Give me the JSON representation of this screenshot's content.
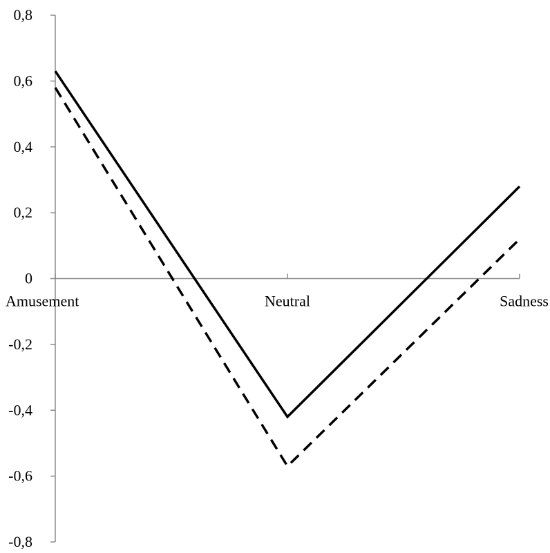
{
  "chart_data": {
    "type": "line",
    "title": "",
    "xlabel": "",
    "ylabel": "",
    "categories": [
      "Amusement",
      "Neutral",
      "Sadness"
    ],
    "ylim": [
      -0.8,
      0.8
    ],
    "yticks": [
      0.8,
      0.6,
      0.4,
      0.2,
      0,
      -0.2,
      -0.4,
      -0.6,
      -0.8
    ],
    "ytick_labels": [
      "0,8",
      "0,6",
      "0,4",
      "0,2",
      "0",
      "-0,2",
      "-0,4",
      "-0,6",
      "-0,8"
    ],
    "grid": false,
    "legend": "none",
    "series": [
      {
        "style": "solid",
        "color": "#000000",
        "values": [
          0.63,
          -0.42,
          0.28
        ]
      },
      {
        "style": "dashed",
        "color": "#000000",
        "values": [
          0.58,
          -0.57,
          0.12
        ]
      }
    ]
  }
}
